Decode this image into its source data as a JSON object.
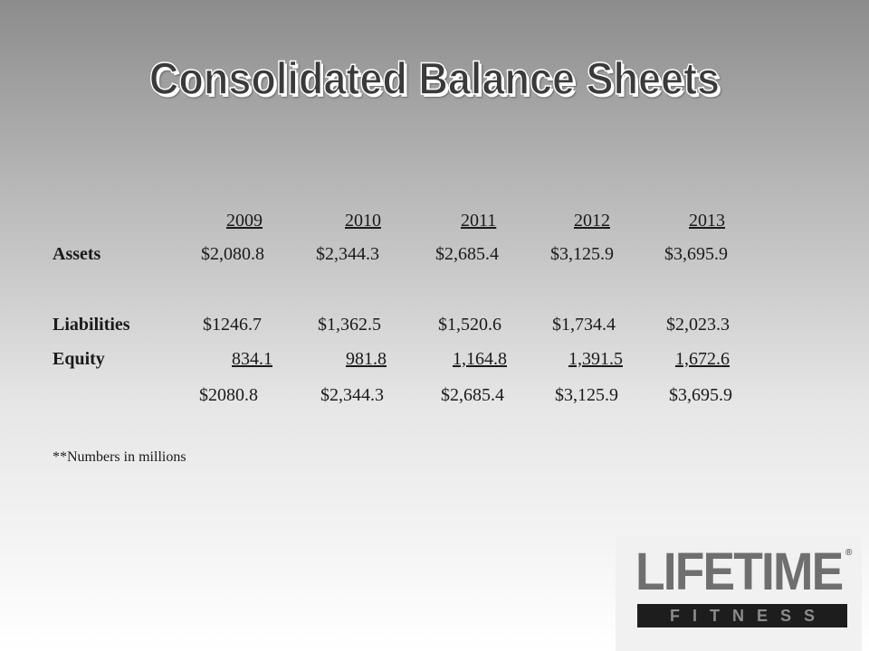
{
  "title": "Consolidated Balance Sheets",
  "years": [
    "2009",
    "2010",
    "2011",
    "2012",
    "2013"
  ],
  "rows": {
    "assets": {
      "label": "Assets",
      "values": [
        "$2,080.8",
        "$2,344.3",
        "$2,685.4",
        "$3,125.9",
        "$3,695.9"
      ]
    },
    "liabilities": {
      "label": "Liabilities",
      "values": [
        "$1246.7",
        "$1,362.5",
        "$1,520.6",
        "$1,734.4",
        "$2,023.3"
      ]
    },
    "equity": {
      "label": "Equity",
      "values": [
        "834.1",
        "981.8",
        "1,164.8",
        "1,391.5",
        "1,672.6"
      ]
    },
    "totals": {
      "values": [
        "$2080.8",
        "$2,344.3",
        "$2,685.4",
        "$3,125.9",
        "$3,695.9"
      ]
    }
  },
  "note": "**Numbers in millions",
  "logo": {
    "top": "LIFETIME",
    "bottom": "FITNESS",
    "mark": "®"
  }
}
